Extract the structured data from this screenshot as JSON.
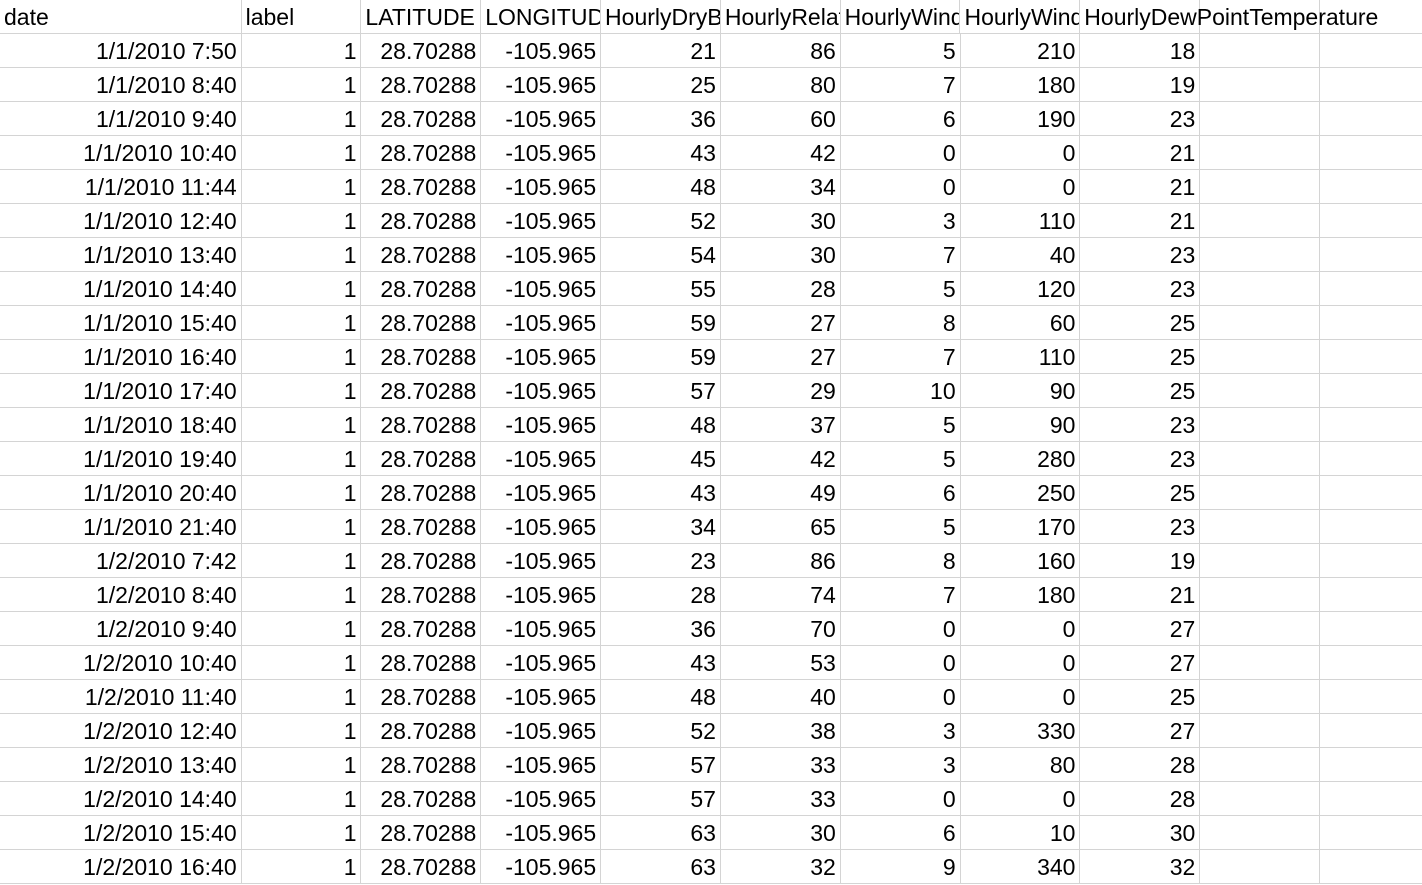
{
  "sheet": {
    "headers": [
      "date",
      "label",
      "LATITUDE",
      "LONGITUDE",
      "HourlyDryBulbTemperature",
      "HourlyRelativeHumidity",
      "HourlyWindSpeed",
      "HourlyWindDirection",
      "HourlyDewPointTemperature",
      "",
      ""
    ],
    "rows": [
      [
        "1/1/2010 7:50",
        "1",
        "28.70288",
        "-105.965",
        "21",
        "86",
        "5",
        "210",
        "18",
        "",
        ""
      ],
      [
        "1/1/2010 8:40",
        "1",
        "28.70288",
        "-105.965",
        "25",
        "80",
        "7",
        "180",
        "19",
        "",
        ""
      ],
      [
        "1/1/2010 9:40",
        "1",
        "28.70288",
        "-105.965",
        "36",
        "60",
        "6",
        "190",
        "23",
        "",
        ""
      ],
      [
        "1/1/2010 10:40",
        "1",
        "28.70288",
        "-105.965",
        "43",
        "42",
        "0",
        "0",
        "21",
        "",
        ""
      ],
      [
        "1/1/2010 11:44",
        "1",
        "28.70288",
        "-105.965",
        "48",
        "34",
        "0",
        "0",
        "21",
        "",
        ""
      ],
      [
        "1/1/2010 12:40",
        "1",
        "28.70288",
        "-105.965",
        "52",
        "30",
        "3",
        "110",
        "21",
        "",
        ""
      ],
      [
        "1/1/2010 13:40",
        "1",
        "28.70288",
        "-105.965",
        "54",
        "30",
        "7",
        "40",
        "23",
        "",
        ""
      ],
      [
        "1/1/2010 14:40",
        "1",
        "28.70288",
        "-105.965",
        "55",
        "28",
        "5",
        "120",
        "23",
        "",
        ""
      ],
      [
        "1/1/2010 15:40",
        "1",
        "28.70288",
        "-105.965",
        "59",
        "27",
        "8",
        "60",
        "25",
        "",
        ""
      ],
      [
        "1/1/2010 16:40",
        "1",
        "28.70288",
        "-105.965",
        "59",
        "27",
        "7",
        "110",
        "25",
        "",
        ""
      ],
      [
        "1/1/2010 17:40",
        "1",
        "28.70288",
        "-105.965",
        "57",
        "29",
        "10",
        "90",
        "25",
        "",
        ""
      ],
      [
        "1/1/2010 18:40",
        "1",
        "28.70288",
        "-105.965",
        "48",
        "37",
        "5",
        "90",
        "23",
        "",
        ""
      ],
      [
        "1/1/2010 19:40",
        "1",
        "28.70288",
        "-105.965",
        "45",
        "42",
        "5",
        "280",
        "23",
        "",
        ""
      ],
      [
        "1/1/2010 20:40",
        "1",
        "28.70288",
        "-105.965",
        "43",
        "49",
        "6",
        "250",
        "25",
        "",
        ""
      ],
      [
        "1/1/2010 21:40",
        "1",
        "28.70288",
        "-105.965",
        "34",
        "65",
        "5",
        "170",
        "23",
        "",
        ""
      ],
      [
        "1/2/2010 7:42",
        "1",
        "28.70288",
        "-105.965",
        "23",
        "86",
        "8",
        "160",
        "19",
        "",
        ""
      ],
      [
        "1/2/2010 8:40",
        "1",
        "28.70288",
        "-105.965",
        "28",
        "74",
        "7",
        "180",
        "21",
        "",
        ""
      ],
      [
        "1/2/2010 9:40",
        "1",
        "28.70288",
        "-105.965",
        "36",
        "70",
        "0",
        "0",
        "27",
        "",
        ""
      ],
      [
        "1/2/2010 10:40",
        "1",
        "28.70288",
        "-105.965",
        "43",
        "53",
        "0",
        "0",
        "27",
        "",
        ""
      ],
      [
        "1/2/2010 11:40",
        "1",
        "28.70288",
        "-105.965",
        "48",
        "40",
        "0",
        "0",
        "25",
        "",
        ""
      ],
      [
        "1/2/2010 12:40",
        "1",
        "28.70288",
        "-105.965",
        "52",
        "38",
        "3",
        "330",
        "27",
        "",
        ""
      ],
      [
        "1/2/2010 13:40",
        "1",
        "28.70288",
        "-105.965",
        "57",
        "33",
        "3",
        "80",
        "28",
        "",
        ""
      ],
      [
        "1/2/2010 14:40",
        "1",
        "28.70288",
        "-105.965",
        "57",
        "33",
        "0",
        "0",
        "28",
        "",
        ""
      ],
      [
        "1/2/2010 15:40",
        "1",
        "28.70288",
        "-105.965",
        "63",
        "30",
        "6",
        "10",
        "30",
        "",
        ""
      ],
      [
        "1/2/2010 16:40",
        "1",
        "28.70288",
        "-105.965",
        "63",
        "32",
        "9",
        "340",
        "32",
        "",
        ""
      ]
    ]
  },
  "colors": {
    "gridline": "#d4d4d4",
    "text": "#000000",
    "background": "#ffffff"
  }
}
